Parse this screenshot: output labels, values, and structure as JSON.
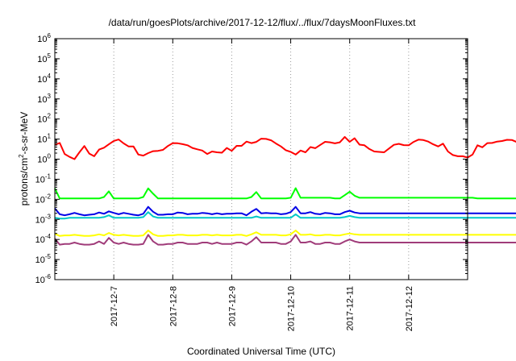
{
  "chart_data": {
    "type": "line",
    "title": "/data/run/goesPlots/archive/2017-12-12/flux/../flux/7daysMoonFluxes.txt",
    "xlabel": "Coordinated Universal Time (UTC)",
    "ylabel": "protons/cm2-s-sr-MeV",
    "yscale": "log",
    "ylim": [
      1e-06,
      1000000.0
    ],
    "xlim": [
      "2017-12-06 00:00",
      "2017-12-13 00:00"
    ],
    "grid": true,
    "legend": "none",
    "y_ticks": [
      {
        "base": "10",
        "exp": "-6"
      },
      {
        "base": "10",
        "exp": "-5"
      },
      {
        "base": "10",
        "exp": "-4"
      },
      {
        "base": "10",
        "exp": "-3"
      },
      {
        "base": "10",
        "exp": "-2"
      },
      {
        "base": "10",
        "exp": "-1"
      },
      {
        "base": "10",
        "exp": "0"
      },
      {
        "base": "10",
        "exp": "1"
      },
      {
        "base": "10",
        "exp": "2"
      },
      {
        "base": "10",
        "exp": "3"
      },
      {
        "base": "10",
        "exp": "4"
      },
      {
        "base": "10",
        "exp": "5"
      },
      {
        "base": "10",
        "exp": "6"
      }
    ],
    "x_ticks": [
      "2017-12-7",
      "2017-12-8",
      "2017-12-9",
      "2017-12-10",
      "2017-12-11",
      "2017-12-12"
    ],
    "x_tick_dates": [
      "2017-12-07 00:00",
      "2017-12-08 00:00",
      "2017-12-09 00:00",
      "2017-12-10 00:00",
      "2017-12-11 00:00",
      "2017-12-12 00:00"
    ],
    "sample_step_hours": 2,
    "series": [
      {
        "color": "#ff0000",
        "values": [
          5.2,
          6.4,
          1.8,
          1.3,
          1.0,
          2.2,
          4.5,
          1.9,
          1.4,
          3.0,
          3.7,
          5.5,
          8.1,
          9.5,
          6.1,
          4.3,
          4.3,
          1.7,
          1.5,
          2.0,
          2.5,
          2.6,
          2.9,
          4.5,
          6.3,
          6.2,
          5.6,
          4.9,
          3.6,
          3.1,
          2.7,
          1.8,
          2.4,
          2.2,
          2.1,
          3.6,
          2.6,
          4.6,
          4.6,
          7.5,
          6.3,
          7.2,
          10.5,
          10.2,
          8.7,
          6.0,
          4.3,
          2.8,
          2.3,
          1.7,
          2.7,
          2.2,
          4.0,
          3.5,
          5.1,
          7.3,
          6.9,
          6.1,
          6.9,
          12.8,
          7.3,
          11.0,
          5.3,
          4.9,
          3.2,
          2.4,
          2.3,
          2.2,
          3.4,
          5.2,
          5.8,
          5.0,
          4.9,
          7.2,
          9.4,
          8.9,
          7.5,
          5.5,
          4.3,
          5.9,
          2.4,
          1.6,
          1.4,
          1.4,
          1.2,
          1.7,
          4.9,
          3.9,
          6.3,
          6.4,
          7.5,
          8.0,
          9.2,
          9.0,
          7.1,
          2.8,
          1.7,
          0.6,
          0.55,
          1.1,
          0.88,
          1.1,
          0.7,
          0.9,
          1.3,
          1.5,
          3.0,
          10.2,
          6.0,
          6.3,
          6.8,
          5.6
        ]
      },
      {
        "color": "#00ff00",
        "values": [
          0.035,
          0.011,
          0.011,
          0.011,
          0.011,
          0.011,
          0.011,
          0.011,
          0.011,
          0.011,
          0.013,
          0.025,
          0.011,
          0.011,
          0.011,
          0.011,
          0.011,
          0.011,
          0.013,
          0.035,
          0.019,
          0.011,
          0.011,
          0.011,
          0.011,
          0.011,
          0.011,
          0.011,
          0.011,
          0.011,
          0.011,
          0.011,
          0.011,
          0.011,
          0.011,
          0.011,
          0.011,
          0.011,
          0.011,
          0.011,
          0.013,
          0.023,
          0.011,
          0.011,
          0.011,
          0.011,
          0.011,
          0.011,
          0.012,
          0.036,
          0.012,
          0.012,
          0.012,
          0.012,
          0.012,
          0.012,
          0.012,
          0.011,
          0.011,
          0.016,
          0.024,
          0.015,
          0.012,
          0.012,
          0.012,
          0.012,
          0.012,
          0.012,
          0.012,
          0.012,
          0.012,
          0.012,
          0.012,
          0.012,
          0.012,
          0.012,
          0.012,
          0.012,
          0.012,
          0.012,
          0.012,
          0.012,
          0.012,
          0.012,
          0.012,
          0.012,
          0.011,
          0.011,
          0.011,
          0.011,
          0.011,
          0.011,
          0.011,
          0.011,
          0.011,
          0.011,
          0.011,
          0.011,
          0.011,
          0.011,
          0.011,
          0.011,
          0.011,
          0.011,
          0.011,
          0.011,
          0.011,
          0.011,
          0.011,
          0.011,
          0.011,
          0.011
        ]
      },
      {
        "color": "#00c8c8",
        "values": [
          0.0012,
          0.0011,
          0.0011,
          0.0012,
          0.0012,
          0.0012,
          0.0012,
          0.0012,
          0.0012,
          0.0012,
          0.0013,
          0.0016,
          0.0012,
          0.0012,
          0.0012,
          0.0012,
          0.0012,
          0.0012,
          0.0013,
          0.0023,
          0.0014,
          0.0012,
          0.0012,
          0.0012,
          0.0012,
          0.0012,
          0.0012,
          0.0012,
          0.0012,
          0.0012,
          0.0012,
          0.0012,
          0.0012,
          0.0012,
          0.0012,
          0.0012,
          0.0012,
          0.0012,
          0.0012,
          0.0012,
          0.0012,
          0.0014,
          0.0012,
          0.0012,
          0.0012,
          0.0012,
          0.0012,
          0.0012,
          0.0012,
          0.0018,
          0.0012,
          0.0012,
          0.0012,
          0.0012,
          0.0012,
          0.0012,
          0.0012,
          0.0012,
          0.0012,
          0.0013,
          0.0015,
          0.0013,
          0.0012,
          0.0012,
          0.0012,
          0.0012,
          0.0012,
          0.0012,
          0.0012,
          0.0012,
          0.0012,
          0.0012,
          0.0012,
          0.0012,
          0.0012,
          0.0012,
          0.0012,
          0.0012,
          0.0012,
          0.0012,
          0.0012,
          0.0012,
          0.0012,
          0.0012,
          0.0012,
          0.0012,
          0.0012,
          0.0012,
          0.0012,
          0.0012,
          0.0012,
          0.0012,
          0.0012,
          0.0012,
          0.0012,
          0.0012,
          0.0012,
          0.0012,
          0.0012,
          0.0012,
          0.0012,
          0.0012,
          0.0012,
          0.0012,
          0.0012,
          0.0012,
          0.0012,
          0.0012,
          0.0012,
          0.0012,
          0.0012,
          0.0012
        ]
      },
      {
        "color": "#0000e6",
        "values": [
          0.0035,
          0.0018,
          0.0016,
          0.0018,
          0.0021,
          0.0018,
          0.0016,
          0.0017,
          0.0018,
          0.0022,
          0.0019,
          0.0025,
          0.0021,
          0.0018,
          0.0021,
          0.0019,
          0.0017,
          0.0016,
          0.0019,
          0.0042,
          0.0024,
          0.0017,
          0.0017,
          0.0018,
          0.0018,
          0.0022,
          0.0021,
          0.0018,
          0.0019,
          0.0019,
          0.0021,
          0.002,
          0.0018,
          0.002,
          0.0018,
          0.0019,
          0.0019,
          0.002,
          0.002,
          0.0016,
          0.0024,
          0.0033,
          0.002,
          0.0021,
          0.002,
          0.002,
          0.0018,
          0.0019,
          0.0023,
          0.0042,
          0.002,
          0.002,
          0.0023,
          0.0019,
          0.0018,
          0.0021,
          0.002,
          0.0018,
          0.0018,
          0.0023,
          0.0027,
          0.0022,
          0.002,
          0.002,
          0.002,
          0.002,
          0.002,
          0.002,
          0.002,
          0.002,
          0.002,
          0.002,
          0.002,
          0.002,
          0.002,
          0.002,
          0.002,
          0.002,
          0.002,
          0.002,
          0.002,
          0.002,
          0.002,
          0.002,
          0.002,
          0.002,
          0.002,
          0.002,
          0.002,
          0.002,
          0.002,
          0.002,
          0.002,
          0.002,
          0.002,
          0.002,
          0.002,
          0.002,
          0.002,
          0.002,
          0.002,
          0.002,
          0.002,
          0.002,
          0.002,
          0.002,
          0.002,
          0.002,
          0.002,
          0.002,
          0.002,
          0.002
        ]
      },
      {
        "color": "#ffff00",
        "values": [
          0.00019,
          0.00015,
          0.00016,
          0.00016,
          0.00017,
          0.00016,
          0.00015,
          0.00015,
          0.00016,
          0.00018,
          0.00016,
          0.00021,
          0.00017,
          0.00016,
          0.00017,
          0.00016,
          0.00015,
          0.00015,
          0.00016,
          0.00028,
          0.00018,
          0.00015,
          0.00015,
          0.00016,
          0.00016,
          0.00017,
          0.00017,
          0.00016,
          0.00016,
          0.00016,
          0.00017,
          0.00017,
          0.00016,
          0.00017,
          0.00016,
          0.00016,
          0.00016,
          0.00017,
          0.00017,
          0.00015,
          0.00018,
          0.00023,
          0.00017,
          0.00017,
          0.00017,
          0.00017,
          0.00016,
          0.00016,
          0.00018,
          0.00028,
          0.00017,
          0.00017,
          0.00018,
          0.00016,
          0.00016,
          0.00017,
          0.00017,
          0.00016,
          0.00016,
          0.00018,
          0.0002,
          0.00018,
          0.00017,
          0.00017,
          0.00017,
          0.00017,
          0.00017,
          0.00017,
          0.00017,
          0.00017,
          0.00017,
          0.00017,
          0.00017,
          0.00017,
          0.00017,
          0.00017,
          0.00017,
          0.00017,
          0.00017,
          0.00017,
          0.00017,
          0.00017,
          0.00017,
          0.00017,
          0.00017,
          0.00017,
          0.00017,
          0.00017,
          0.00017,
          0.00017,
          0.00017,
          0.00017,
          0.00017,
          0.00017,
          0.00017,
          0.00017,
          0.00017,
          0.00017,
          0.00017,
          0.00017,
          0.00017,
          0.00017,
          0.00017,
          0.00017,
          0.00017,
          0.00017,
          0.00017,
          0.00017,
          0.00017,
          0.00017,
          0.00017,
          0.00017
        ]
      },
      {
        "color": "#a03c7a",
        "values": [
          0.00011,
          5.5e-05,
          6e-05,
          6e-05,
          7e-05,
          6e-05,
          5.5e-05,
          5.5e-05,
          6e-05,
          8e-05,
          6e-05,
          0.00012,
          7e-05,
          6e-05,
          7e-05,
          6e-05,
          5.5e-05,
          5.5e-05,
          6e-05,
          0.00017,
          8e-05,
          5.5e-05,
          5.5e-05,
          6e-05,
          6e-05,
          7e-05,
          7e-05,
          6e-05,
          6e-05,
          6e-05,
          7e-05,
          7e-05,
          6e-05,
          7e-05,
          6e-05,
          6e-05,
          6e-05,
          7e-05,
          7e-05,
          5.5e-05,
          8e-05,
          0.00013,
          7e-05,
          7e-05,
          7e-05,
          7e-05,
          6e-05,
          6e-05,
          8e-05,
          0.00017,
          7e-05,
          7e-05,
          8e-05,
          6e-05,
          6e-05,
          7e-05,
          7e-05,
          6e-05,
          6e-05,
          8e-05,
          0.0001,
          8e-05,
          7e-05,
          7e-05,
          7e-05,
          7e-05,
          7e-05,
          7e-05,
          7e-05,
          7e-05,
          7e-05,
          7e-05,
          7e-05,
          7e-05,
          7e-05,
          7e-05,
          7e-05,
          7e-05,
          7e-05,
          7e-05,
          7e-05,
          7e-05,
          7e-05,
          7e-05,
          7e-05,
          7e-05,
          7e-05,
          7e-05,
          7e-05,
          7e-05,
          7e-05,
          7e-05,
          7e-05,
          7e-05,
          7e-05,
          7e-05,
          7e-05,
          7e-05,
          7e-05,
          7e-05,
          7e-05,
          7e-05,
          7e-05,
          7e-05,
          7e-05,
          7e-05,
          7e-05,
          7e-05,
          7e-05,
          7e-05,
          7e-05,
          7e-05
        ]
      }
    ]
  }
}
